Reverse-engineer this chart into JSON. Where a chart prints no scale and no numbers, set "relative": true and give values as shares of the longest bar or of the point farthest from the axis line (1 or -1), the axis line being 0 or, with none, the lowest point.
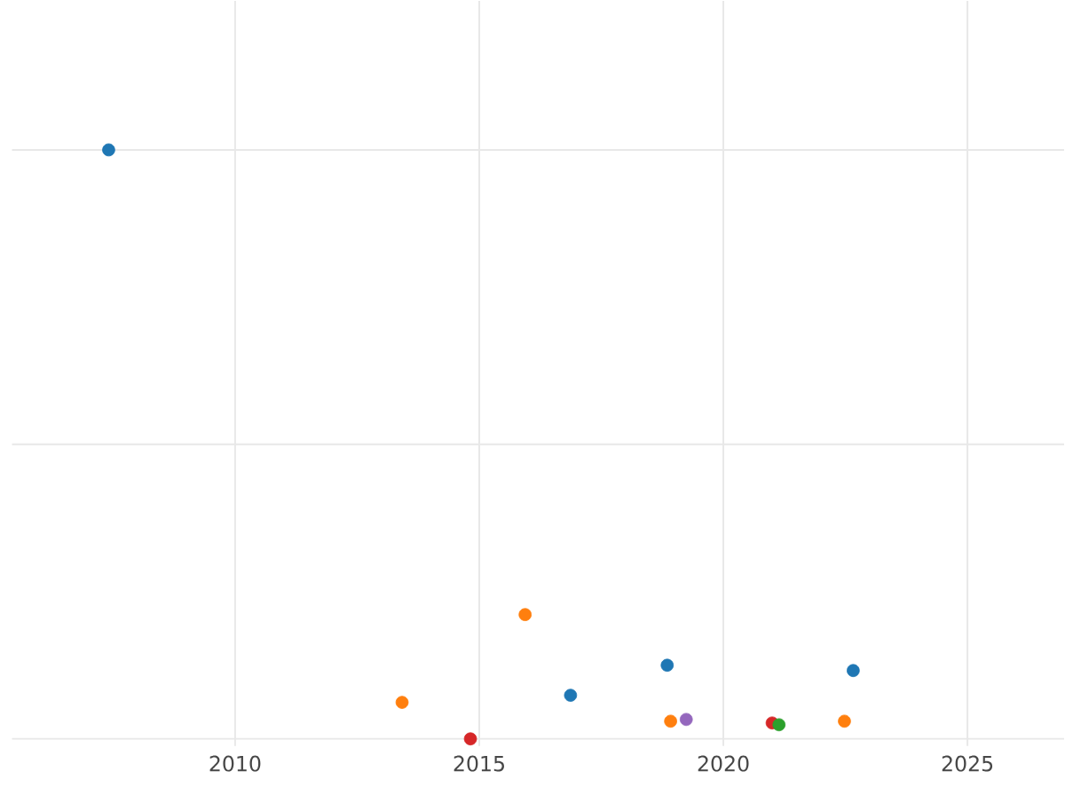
{
  "chart_data": {
    "type": "scatter",
    "relative": true,
    "xlim": [
      2005.43,
      2026.98
    ],
    "xticks": [
      2010,
      2015,
      2020,
      2025
    ],
    "grid": true,
    "tick_labels": "x",
    "marker": "circle",
    "series": [
      {
        "color": "#1f77b4",
        "x": [
          2007.41,
          2016.87,
          2018.85,
          2022.66
        ],
        "values": [
          1,
          0.074,
          0.125,
          0.116
        ]
      },
      {
        "color": "#ff7f0e",
        "x": [
          2013.42,
          2015.94,
          2018.92,
          2022.48
        ],
        "values": [
          0.062,
          0.211,
          0.03,
          0.03
        ]
      },
      {
        "color": "#d62728",
        "x": [
          2014.82,
          2021.0
        ],
        "values": [
          0,
          0.027
        ]
      },
      {
        "color": "#2ca02c",
        "x": [
          2021.14
        ],
        "values": [
          0.024
        ]
      },
      {
        "color": "#9467bd",
        "x": [
          2019.24
        ],
        "values": [
          0.033
        ]
      }
    ]
  }
}
